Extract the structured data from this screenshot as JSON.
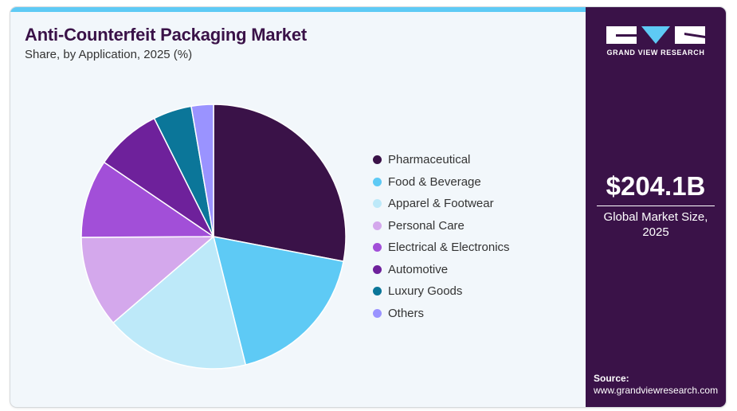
{
  "header": {
    "title": "Anti-Counterfeit Packaging Market",
    "subtitle": "Share, by Application, 2025 (%)"
  },
  "brand": {
    "name": "GRAND VIEW RESEARCH",
    "accent": "#5ecaf5",
    "panel_color": "#3a1248"
  },
  "metric": {
    "value": "$204.1B",
    "label_line1": "Global Market Size,",
    "label_line2": "2025"
  },
  "source": {
    "label": "Source:",
    "url": "www.grandviewresearch.com"
  },
  "chart_data": {
    "type": "pie",
    "title": "Anti-Counterfeit Packaging Market",
    "subtitle": "Share, by Application, 2025 (%)",
    "legend_position": "right",
    "start_angle": "12 o'clock, clockwise",
    "categories": [
      "Pharmaceutical",
      "Food & Beverage",
      "Apparel & Footwear",
      "Personal Care",
      "Electrical & Electronics",
      "Automotive",
      "Luxury Goods",
      "Others"
    ],
    "values": [
      28.0,
      18.1,
      17.6,
      11.2,
      9.6,
      8.1,
      4.7,
      2.7
    ],
    "colors": [
      "#3a1248",
      "#5ecaf5",
      "#bde9f9",
      "#d4a8ec",
      "#a24fd8",
      "#6e219b",
      "#0b7699",
      "#9a93ff"
    ]
  }
}
